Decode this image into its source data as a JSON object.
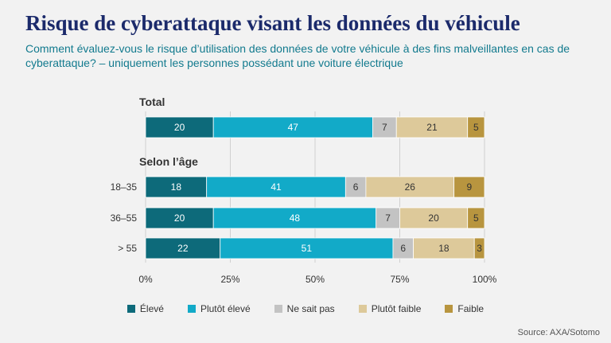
{
  "title": "Risque de cyberattaque visant les données du véhicule",
  "subtitle": "Comment évaluez-vous le risque d’utilisation des données de votre véhicule à des fins malveillantes en cas de cyberattaque? – uniquement les personnes possédant une voiture électrique",
  "source": "Source: AXA/Sotomo",
  "chart_data": {
    "type": "bar",
    "orientation": "horizontal",
    "stacked": true,
    "groups": [
      {
        "label": "Total",
        "rows": [
          {
            "category": "",
            "values": [
              20,
              47,
              7,
              21,
              5
            ]
          }
        ]
      },
      {
        "label": "Selon l’âge",
        "rows": [
          {
            "category": "18–35",
            "values": [
              18,
              41,
              6,
              26,
              9
            ]
          },
          {
            "category": "36–55",
            "values": [
              20,
              48,
              7,
              20,
              5
            ]
          },
          {
            "category": "> 55",
            "values": [
              22,
              51,
              6,
              18,
              3
            ]
          }
        ]
      }
    ],
    "series": [
      {
        "name": "Élevé",
        "color": "#0d6a7a"
      },
      {
        "name": "Plutôt élevé",
        "color": "#12aac8"
      },
      {
        "name": "Ne sait pas",
        "color": "#c3c3c3"
      },
      {
        "name": "Plutôt faible",
        "color": "#ddc99a"
      },
      {
        "name": "Faible",
        "color": "#b8953f"
      }
    ],
    "xlim": [
      0,
      100
    ],
    "xticks": [
      "0%",
      "25%",
      "50%",
      "75%",
      "100%"
    ],
    "grid": true,
    "legend": "bottom"
  }
}
